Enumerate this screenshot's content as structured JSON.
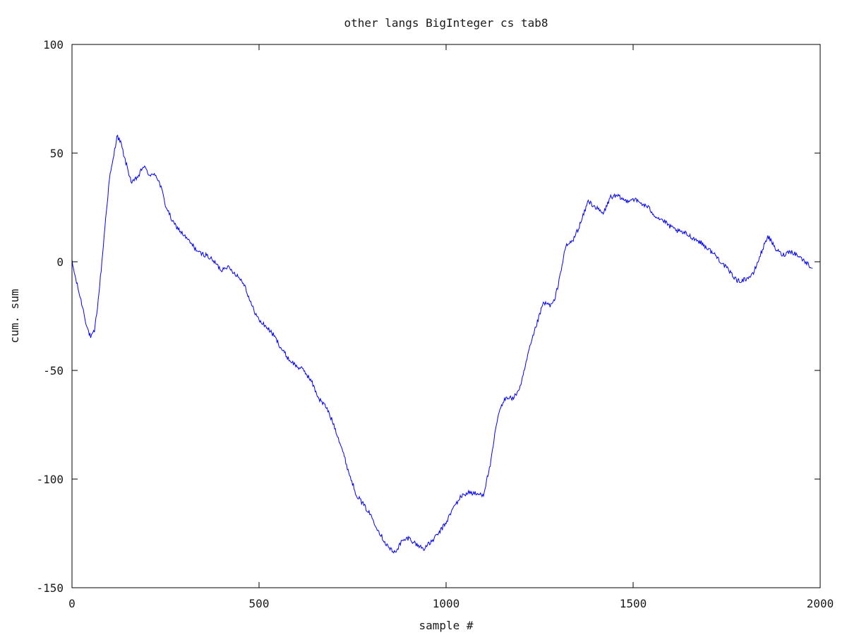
{
  "chart_data": {
    "type": "line",
    "title": "other langs BigInteger cs tab8",
    "xlabel": "sample #",
    "ylabel": "cum. sum",
    "xlim": [
      0,
      2000
    ],
    "ylim": [
      -150,
      100
    ],
    "xticks": [
      0,
      500,
      1000,
      1500,
      2000
    ],
    "xtick_labels": [
      "0",
      "500",
      "1000",
      "1500",
      "2000"
    ],
    "yticks": [
      -150,
      -100,
      -50,
      0,
      50,
      100
    ],
    "ytick_labels": [
      "-150",
      "-100",
      "-50",
      "0",
      "50",
      "100"
    ],
    "grid": false,
    "legend": "none",
    "series": [
      {
        "color": "#0000ff",
        "x": [
          0,
          10,
          20,
          30,
          40,
          50,
          60,
          70,
          80,
          90,
          100,
          110,
          120,
          130,
          140,
          150,
          160,
          170,
          180,
          190,
          200,
          210,
          220,
          230,
          240,
          250,
          260,
          270,
          280,
          290,
          300,
          320,
          340,
          360,
          380,
          400,
          410,
          420,
          440,
          460,
          480,
          500,
          520,
          540,
          560,
          580,
          600,
          620,
          640,
          660,
          680,
          700,
          720,
          740,
          760,
          780,
          800,
          820,
          840,
          860,
          870,
          880,
          900,
          920,
          940,
          960,
          980,
          1000,
          1020,
          1040,
          1060,
          1080,
          1100,
          1120,
          1130,
          1140,
          1160,
          1180,
          1200,
          1220,
          1240,
          1260,
          1280,
          1290,
          1300,
          1320,
          1340,
          1360,
          1380,
          1400,
          1420,
          1430,
          1440,
          1460,
          1480,
          1500,
          1520,
          1540,
          1560,
          1580,
          1600,
          1620,
          1640,
          1660,
          1680,
          1700,
          1720,
          1740,
          1760,
          1780,
          1800,
          1820,
          1840,
          1860,
          1880,
          1900,
          1920,
          1940,
          1960,
          1980
        ],
        "y": [
          0,
          -8,
          -15,
          -22,
          -30,
          -35,
          -32,
          -18,
          0,
          20,
          38,
          47,
          58,
          55,
          48,
          42,
          36,
          38,
          40,
          44,
          42,
          39,
          41,
          38,
          33,
          26,
          22,
          18,
          16,
          14,
          12,
          8,
          4,
          3,
          0,
          -4,
          -2,
          -3,
          -6,
          -10,
          -20,
          -27,
          -30,
          -34,
          -40,
          -45,
          -48,
          -50,
          -55,
          -63,
          -67,
          -75,
          -85,
          -97,
          -107,
          -112,
          -117,
          -124,
          -130,
          -134,
          -132,
          -129,
          -127,
          -130,
          -132,
          -129,
          -125,
          -120,
          -113,
          -108,
          -106,
          -107,
          -107,
          -92,
          -80,
          -70,
          -62,
          -63,
          -57,
          -42,
          -30,
          -19,
          -20,
          -18,
          -10,
          7,
          10,
          18,
          28,
          25,
          22,
          26,
          30,
          30,
          28,
          29,
          27,
          25,
          21,
          19,
          16,
          14,
          13,
          11,
          9,
          6,
          3,
          -1,
          -5,
          -9,
          -8,
          -6,
          3,
          12,
          6,
          3,
          5,
          3,
          0,
          -3
        ]
      }
    ]
  }
}
